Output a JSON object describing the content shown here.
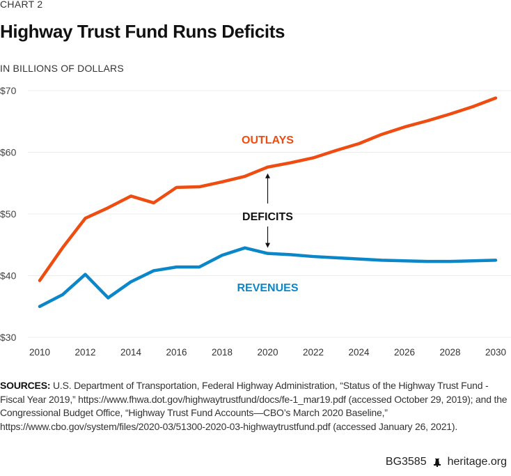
{
  "header": {
    "kicker": "CHART 2",
    "title": "Highway Trust Fund Runs Deficits",
    "unit": "IN BILLIONS OF DOLLARS"
  },
  "chart_data": {
    "type": "line",
    "title": "Highway Trust Fund Runs Deficits",
    "ylabel": "IN BILLIONS OF DOLLARS",
    "xlabel": "",
    "x": [
      2010,
      2011,
      2012,
      2013,
      2014,
      2015,
      2016,
      2017,
      2018,
      2019,
      2020,
      2021,
      2022,
      2023,
      2024,
      2025,
      2026,
      2027,
      2028,
      2029,
      2030
    ],
    "xticks": [
      "2010",
      "2012",
      "2014",
      "2016",
      "2018",
      "2020",
      "2022",
      "2024",
      "2026",
      "2028",
      "2030"
    ],
    "xtick_values": [
      2010,
      2012,
      2014,
      2016,
      2018,
      2020,
      2022,
      2024,
      2026,
      2028,
      2030
    ],
    "yticks": [
      "$30",
      "$40",
      "$50",
      "$60",
      "$70"
    ],
    "ytick_values": [
      30,
      40,
      50,
      60,
      70
    ],
    "ylim": [
      30,
      70
    ],
    "xlim": [
      2010,
      2030
    ],
    "grid": true,
    "series": [
      {
        "name": "OUTLAYS",
        "color": "#ee4c10",
        "values": [
          39.2,
          44.5,
          49.3,
          51.0,
          52.9,
          51.8,
          54.3,
          54.4,
          55.2,
          56.1,
          57.6,
          58.3,
          59.1,
          60.3,
          61.4,
          62.9,
          64.1,
          65.1,
          66.2,
          67.4,
          68.8
        ]
      },
      {
        "name": "REVENUES",
        "color": "#0b86c8",
        "values": [
          35.0,
          36.9,
          40.2,
          36.4,
          39.0,
          40.8,
          41.4,
          41.4,
          43.3,
          44.5,
          43.6,
          43.4,
          43.1,
          42.9,
          42.7,
          42.5,
          42.4,
          42.3,
          42.3,
          42.4,
          42.5
        ]
      }
    ],
    "annotations": [
      {
        "text": "DEFICITS",
        "x": 2020,
        "arrows": "up-to-outlays and down-to-revenues"
      }
    ]
  },
  "sources": {
    "label": "SOURCES:",
    "text": " U.S. Department of Transportation, Federal Highway Administration, “Status of the Highway Trust Fund - Fiscal Year 2019,” https://www.fhwa.dot.gov/highwaytrustfund/docs/fe-1_mar19.pdf (accessed October 29, 2019); and the Congressional Budget Office, “Highway Trust Fund Accounts—CBO’s March 2020 Baseline,” https://www.cbo.gov/system/files/2020-03/51300-2020-03-highwaytrustfund.pdf (accessed January 26, 2021)."
  },
  "footer": {
    "code": "BG3585",
    "icon": "liberty-bell-icon",
    "site": "heritage.org"
  }
}
